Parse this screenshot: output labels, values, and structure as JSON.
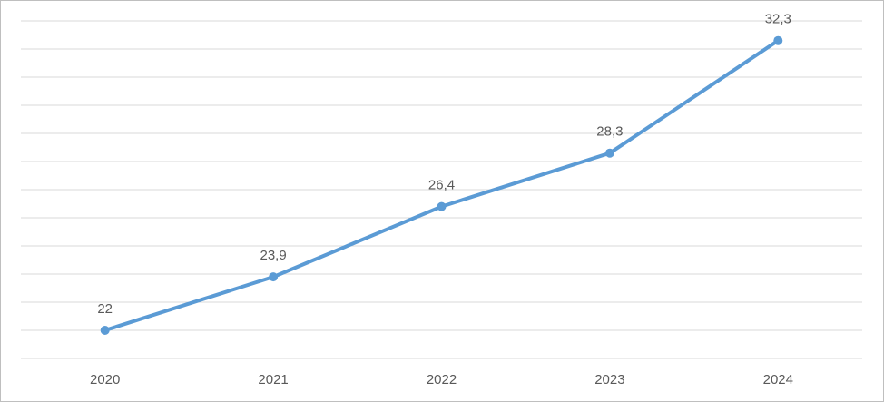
{
  "chart_data": {
    "type": "line",
    "categories": [
      "2020",
      "2021",
      "2022",
      "2023",
      "2024"
    ],
    "values": [
      22,
      23.9,
      26.4,
      28.3,
      32.3
    ],
    "value_labels": [
      "22",
      "23,9",
      "26,4",
      "28,3",
      "32,3"
    ],
    "color": "#5b9bd5",
    "ylim": [
      21,
      33
    ],
    "yticks": [
      21,
      22,
      23,
      24,
      25,
      26,
      27,
      28,
      29,
      30,
      31,
      32,
      33
    ],
    "grid": true
  }
}
